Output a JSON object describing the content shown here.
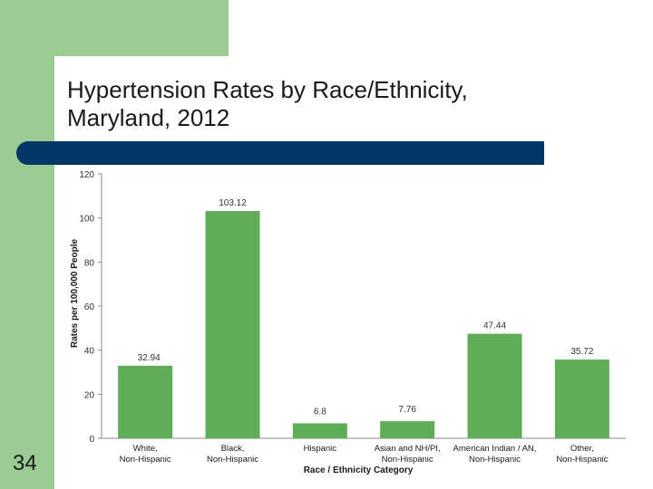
{
  "slide": {
    "title": "Hypertension Rates by Race/Ethnicity, Maryland, 2012",
    "page_number": "34"
  },
  "colors": {
    "accent_green": "#9ccc94",
    "navy": "#003865",
    "bar": "#5fad56"
  },
  "chart_data": {
    "type": "bar",
    "title": "Hypertension Rates by Race/Ethnicity, Maryland, 2012",
    "xlabel": "Race / Ethnicity Category",
    "ylabel": "Rates per 100,000 People",
    "ylim": [
      0,
      120
    ],
    "yticks": [
      "0",
      "20",
      "40",
      "60",
      "80",
      "100",
      "120"
    ],
    "categories": [
      "White, Non-Hispanic",
      "Black, Non-Hispanic",
      "Hispanic",
      "Asian and NH/PI, Non-Hispanic",
      "American Indian / AN, Non-Hispanic",
      "Other, Non-Hispanic"
    ],
    "values": [
      32.94,
      103.12,
      6.8,
      7.76,
      47.44,
      35.72
    ],
    "data_labels": [
      "32.94",
      "103.12",
      "6.8",
      "7.76",
      "47.44",
      "35.72"
    ],
    "grid": false,
    "legend": "none"
  }
}
